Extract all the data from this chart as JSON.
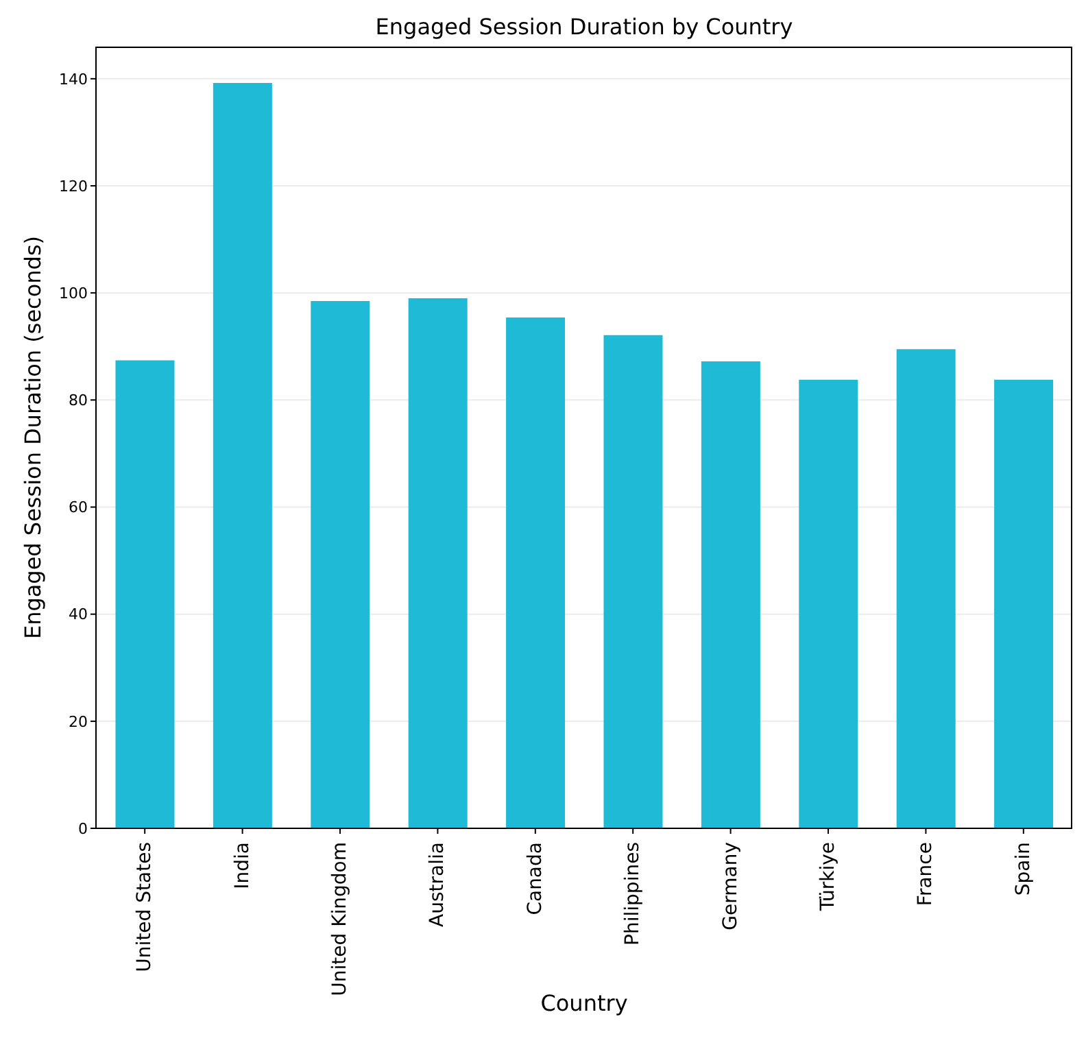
{
  "chart_data": {
    "type": "bar",
    "title": "Engaged Session Duration by Country",
    "xlabel": "Country",
    "ylabel": "Engaged Session Duration (seconds)",
    "categories": [
      "United States",
      "India",
      "United Kingdom",
      "Australia",
      "Canada",
      "Philippines",
      "Germany",
      "Türkiye",
      "France",
      "Spain"
    ],
    "values": [
      87.4,
      139.2,
      98.5,
      99.0,
      95.4,
      92.1,
      87.2,
      83.8,
      89.5,
      83.8
    ],
    "color": "#1fbad6",
    "ylim": [
      0,
      146
    ],
    "yticks": [
      0,
      20,
      40,
      60,
      80,
      100,
      120,
      140
    ],
    "grid": "y"
  }
}
